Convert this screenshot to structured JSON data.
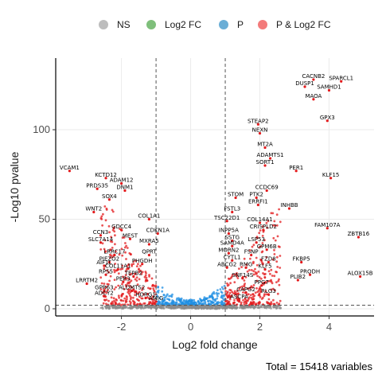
{
  "chart_data": {
    "type": "scatter",
    "xlabel": "Log2 fold change",
    "ylabel": "-Log10 pvalue",
    "caption": "Total = 15418 variables",
    "xlim": [
      -3.9,
      5.3
    ],
    "ylim": [
      -4,
      140
    ],
    "x_ticks": [
      "-2",
      "0",
      "2",
      "4"
    ],
    "y_ticks": [
      "0",
      "50",
      "100"
    ],
    "x_tick_values": [
      -2,
      0,
      2,
      4
    ],
    "y_tick_values": [
      0,
      50,
      100
    ],
    "grid": true,
    "legend_position": "top",
    "fc_cutoff": 1,
    "p_cutoff": 2,
    "legend": [
      {
        "label": "NS",
        "color": "#bdbdbd"
      },
      {
        "label": "Log2 FC",
        "color": "#7fbf7b"
      },
      {
        "label": "P",
        "color": "#6baed6"
      },
      {
        "label": "P & Log2 FC",
        "color": "#f37b7b"
      }
    ],
    "colors": {
      "NS": "#8c8c8c",
      "P": "#1f8fe3",
      "P_FC": "#e31a1c"
    },
    "labeled_genes": [
      {
        "name": "CACNB2",
        "x": 3.55,
        "y": 128
      },
      {
        "name": "SPARCL1",
        "x": 4.35,
        "y": 127
      },
      {
        "name": "DUSP1",
        "x": 3.3,
        "y": 124
      },
      {
        "name": "SAMHD1",
        "x": 4.0,
        "y": 122
      },
      {
        "name": "MAOA",
        "x": 3.55,
        "y": 117
      },
      {
        "name": "STEAP2",
        "x": 1.95,
        "y": 103
      },
      {
        "name": "GPX3",
        "x": 3.95,
        "y": 105
      },
      {
        "name": "NEXN",
        "x": 2.0,
        "y": 98
      },
      {
        "name": "MT2A",
        "x": 2.15,
        "y": 90
      },
      {
        "name": "ADAMTS1",
        "x": 2.3,
        "y": 84
      },
      {
        "name": "SORT1",
        "x": 2.15,
        "y": 80
      },
      {
        "name": "PER1",
        "x": 3.05,
        "y": 77
      },
      {
        "name": "KLF15",
        "x": 4.05,
        "y": 73
      },
      {
        "name": "VCAM1",
        "x": -3.5,
        "y": 77
      },
      {
        "name": "KCTD12",
        "x": -2.45,
        "y": 73
      },
      {
        "name": "ADAM12",
        "x": -2.0,
        "y": 70
      },
      {
        "name": "PRDS35",
        "x": -2.7,
        "y": 67
      },
      {
        "name": "DNM1",
        "x": -1.9,
        "y": 66
      },
      {
        "name": "SOX4",
        "x": -2.35,
        "y": 61
      },
      {
        "name": "CCDC69",
        "x": 2.2,
        "y": 66
      },
      {
        "name": "STOM",
        "x": 1.3,
        "y": 62
      },
      {
        "name": "PTK2",
        "x": 1.9,
        "y": 62
      },
      {
        "name": "ERRFI1",
        "x": 1.95,
        "y": 58
      },
      {
        "name": "INHBB",
        "x": 2.85,
        "y": 56
      },
      {
        "name": "WNT2",
        "x": -2.8,
        "y": 54
      },
      {
        "name": "FSTL3",
        "x": 1.2,
        "y": 54
      },
      {
        "name": "COL1A1",
        "x": -1.2,
        "y": 50
      },
      {
        "name": "TSC22D1",
        "x": 1.05,
        "y": 49
      },
      {
        "name": "COL14A1",
        "x": 2.0,
        "y": 48
      },
      {
        "name": "GDCC4",
        "x": -2.0,
        "y": 44
      },
      {
        "name": "CRISPLD2",
        "x": 2.1,
        "y": 44
      },
      {
        "name": "FAM107A",
        "x": 3.95,
        "y": 45
      },
      {
        "name": "CCN3",
        "x": -2.6,
        "y": 41
      },
      {
        "name": "MEST",
        "x": -1.75,
        "y": 39
      },
      {
        "name": "CDKN1A",
        "x": -0.95,
        "y": 42
      },
      {
        "name": "INPP5A",
        "x": 1.1,
        "y": 42
      },
      {
        "name": "ZBTB16",
        "x": 4.85,
        "y": 40
      },
      {
        "name": "SLC7A14",
        "x": -2.6,
        "y": 37
      },
      {
        "name": "MXRA5",
        "x": -1.2,
        "y": 36
      },
      {
        "name": "SSTG",
        "x": 1.2,
        "y": 38
      },
      {
        "name": "LSP53",
        "x": 1.9,
        "y": 37
      },
      {
        "name": "SAMD4A",
        "x": 1.2,
        "y": 35
      },
      {
        "name": "GPM6B",
        "x": 2.2,
        "y": 33
      },
      {
        "name": "LRRC17",
        "x": -2.2,
        "y": 30
      },
      {
        "name": "QPRT",
        "x": -1.2,
        "y": 30
      },
      {
        "name": "MORN2",
        "x": 1.1,
        "y": 31
      },
      {
        "name": "FSNP",
        "x": 1.75,
        "y": 30
      },
      {
        "name": "PIEZO2",
        "x": -2.35,
        "y": 26
      },
      {
        "name": "PHGDH",
        "x": -1.4,
        "y": 25
      },
      {
        "name": "CYTL1",
        "x": 1.2,
        "y": 27
      },
      {
        "name": "FZD8",
        "x": 2.25,
        "y": 26
      },
      {
        "name": "FKBP5",
        "x": 3.2,
        "y": 26
      },
      {
        "name": "AIF1L",
        "x": -2.5,
        "y": 24
      },
      {
        "name": "COL11A1",
        "x": -2.1,
        "y": 22
      },
      {
        "name": "ABCG2",
        "x": 1.05,
        "y": 23
      },
      {
        "name": "RMG",
        "x": 1.6,
        "y": 23
      },
      {
        "name": "KLF5",
        "x": 2.15,
        "y": 22
      },
      {
        "name": "RPS5",
        "x": -2.45,
        "y": 19
      },
      {
        "name": "TEPB2",
        "x": -1.65,
        "y": 18
      },
      {
        "name": "SNF14S",
        "x": 1.5,
        "y": 17
      },
      {
        "name": "PRODH",
        "x": 3.45,
        "y": 19
      },
      {
        "name": "PLIB2",
        "x": 3.1,
        "y": 16
      },
      {
        "name": "ALOX15B",
        "x": 4.9,
        "y": 18
      },
      {
        "name": "LRRTM2",
        "x": -3.0,
        "y": 14
      },
      {
        "name": "PER3",
        "x": -1.95,
        "y": 15
      },
      {
        "name": "GPR63",
        "x": -2.5,
        "y": 10
      },
      {
        "name": "ADCY2",
        "x": -2.5,
        "y": 7
      },
      {
        "name": "ALDMTS2",
        "x": -1.7,
        "y": 10
      },
      {
        "name": "HORG1",
        "x": -1.3,
        "y": 6
      },
      {
        "name": "AMIG",
        "x": -1.0,
        "y": 4
      },
      {
        "name": "PPG7",
        "x": 2.05,
        "y": 13
      },
      {
        "name": "RLG3",
        "x": 2.25,
        "y": 8
      },
      {
        "name": "CAPG2",
        "x": 1.6,
        "y": 9
      },
      {
        "name": "ASCPA",
        "x": 1.4,
        "y": 5
      }
    ]
  }
}
